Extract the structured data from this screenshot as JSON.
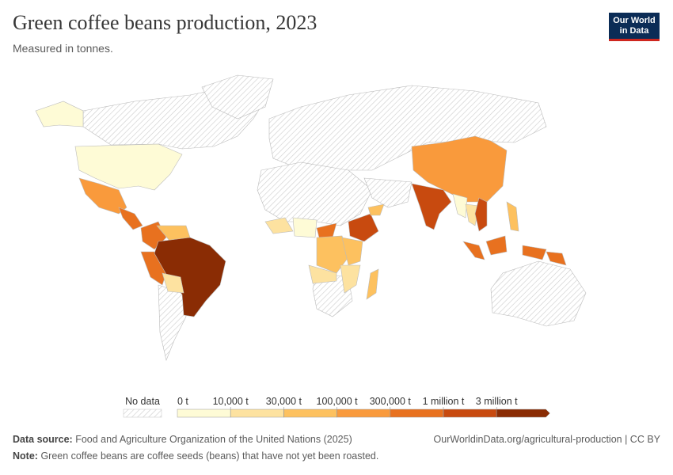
{
  "header": {
    "title": "Green coffee beans production, 2023",
    "subtitle": "Measured in tonnes.",
    "logo": [
      "Our World",
      "in Data"
    ]
  },
  "legend": {
    "no_data_label": "No data",
    "ticks": [
      "0 t",
      "10,000 t",
      "30,000 t",
      "100,000 t",
      "300,000 t",
      "1 million t",
      "3 million t"
    ],
    "colors": [
      "#fefbd6",
      "#fde2a0",
      "#fdc15f",
      "#f99a3c",
      "#e8711f",
      "#c84a0f",
      "#8a2c04"
    ]
  },
  "footer": {
    "source_label": "Data source:",
    "source": "Food and Agriculture Organization of the United Nations (2025)",
    "url": "OurWorldinData.org/agricultural-production | CC BY",
    "note_label": "Note:",
    "note": "Green coffee beans are coffee seeds (beans) that have not yet been roasted."
  }
}
